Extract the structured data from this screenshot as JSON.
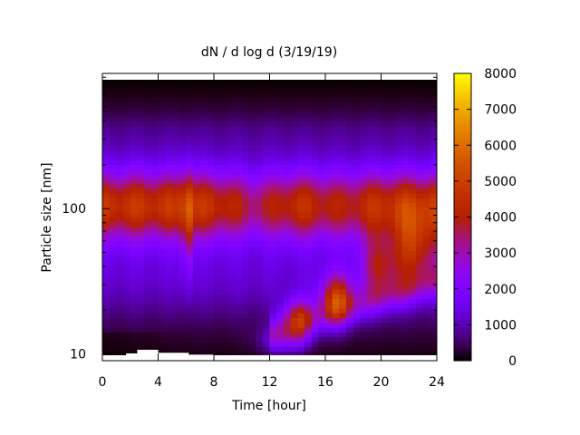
{
  "chart_data": {
    "type": "heatmap",
    "title": "dN / d log d (3/19/19)",
    "xlabel": "Time [hour]",
    "ylabel": "Particle size [nm]",
    "xlim": [
      0,
      24
    ],
    "ylim": [
      9,
      850
    ],
    "y_scale": "log",
    "x_ticks": [
      0,
      4,
      8,
      12,
      16,
      20,
      24
    ],
    "y_ticks": [
      10,
      100
    ],
    "colorbar": {
      "range": [
        0,
        8000
      ],
      "ticks": [
        0,
        1000,
        2000,
        3000,
        4000,
        5000,
        6000,
        7000,
        8000
      ],
      "colormap": "gnuplot"
    },
    "grid": false,
    "features": [
      {
        "description": "persistent accumulation-mode band",
        "x_range": [
          0,
          24
        ],
        "diameter_nm": 100,
        "value": 4500
      },
      {
        "description": "new particle formation event peak",
        "time_hour": 14,
        "diameter_nm": 17,
        "value": 7000
      },
      {
        "description": "new particle formation event peak",
        "time_hour": 16.8,
        "diameter_nm": 23,
        "value": 7400
      },
      {
        "description": "burst",
        "time_hour": 6.1,
        "diameter_nm": 90,
        "value": 6500
      }
    ]
  }
}
